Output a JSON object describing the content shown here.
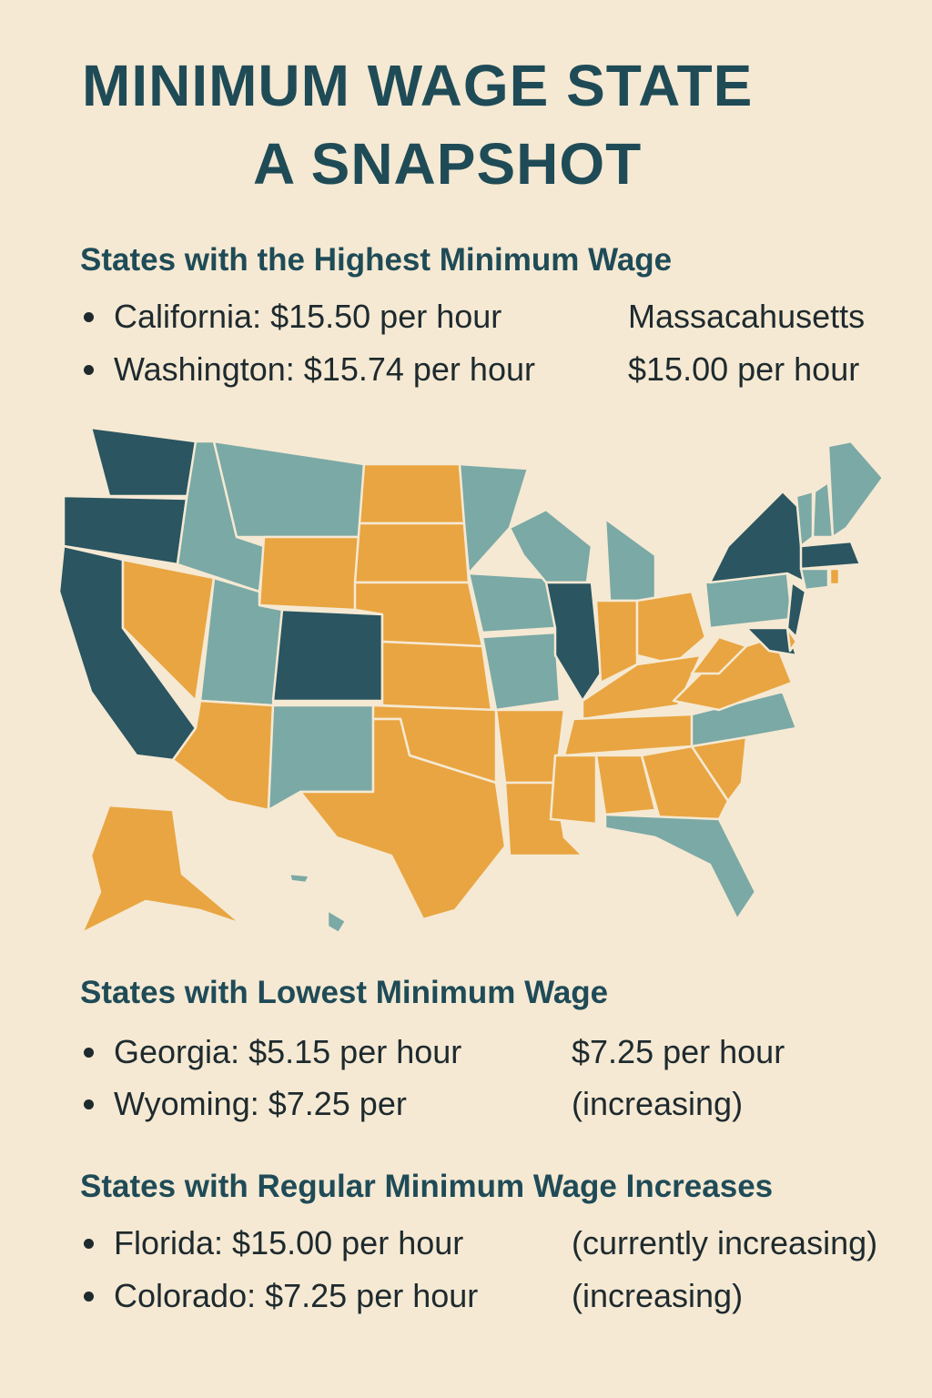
{
  "title": [
    "MINIMUM WAGE STATE",
    "A SNAPSHOT"
  ],
  "sections": [
    {
      "heading": "States with the Highest Minimum Wage",
      "bullets": [
        "California: $15.50 per hour",
        "Washington: $15.74 per hour"
      ],
      "notes": [
        "Massacahusetts",
        "$15.00 per hour"
      ]
    },
    {
      "heading": "States with Lowest Minimum Wage",
      "bullets": [
        "Georgia: $5.15 per hour",
        "Wyoming: $7.25 per"
      ],
      "notes": [
        "$7.25 per hour",
        "(increasing)"
      ]
    },
    {
      "heading": "States with Regular Minimum Wage Increases",
      "bullets": [
        "Florida: $15.00 per hour",
        "Colorado: $7.25 per hour"
      ],
      "notes": [
        "(currently increasing)",
        "(increasing)"
      ]
    }
  ]
}
